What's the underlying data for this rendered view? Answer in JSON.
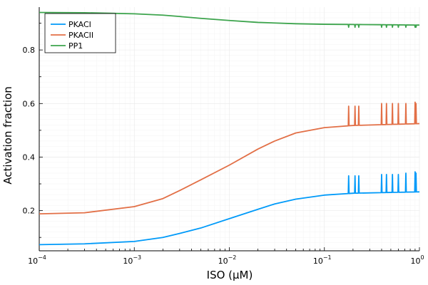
{
  "chart_data": {
    "type": "line",
    "title": "",
    "xlabel": "ISO (μM)",
    "ylabel": "Activation fraction",
    "xscale": "log10",
    "xlim": [
      0.0001,
      1
    ],
    "ylim": [
      0.05,
      0.96
    ],
    "grid": true,
    "legend_position": "top-left",
    "x_ticks": [
      {
        "value": 0.0001,
        "mantissa": "10",
        "exp": "−4"
      },
      {
        "value": 0.001,
        "mantissa": "10",
        "exp": "−3"
      },
      {
        "value": 0.01,
        "mantissa": "10",
        "exp": "−2"
      },
      {
        "value": 0.1,
        "mantissa": "10",
        "exp": "−1"
      },
      {
        "value": 1,
        "mantissa": "10",
        "exp": "0"
      }
    ],
    "y_ticks": [
      {
        "value": 0.2,
        "label": "0.2"
      },
      {
        "value": 0.4,
        "label": "0.4"
      },
      {
        "value": 0.6,
        "label": "0.6"
      },
      {
        "value": 0.8,
        "label": "0.8"
      }
    ],
    "series": [
      {
        "name": "PKACI",
        "color": "#009af9",
        "baseline_points": [
          [
            0.0001,
            0.073
          ],
          [
            0.0003,
            0.076
          ],
          [
            0.001,
            0.085
          ],
          [
            0.002,
            0.1
          ],
          [
            0.003,
            0.115
          ],
          [
            0.005,
            0.135
          ],
          [
            0.01,
            0.17
          ],
          [
            0.02,
            0.205
          ],
          [
            0.03,
            0.225
          ],
          [
            0.05,
            0.243
          ],
          [
            0.1,
            0.258
          ],
          [
            0.2,
            0.265
          ],
          [
            0.5,
            0.268
          ],
          [
            1,
            0.27
          ]
        ],
        "spikes": [
          [
            0.18,
            0.33
          ],
          [
            0.21,
            0.33
          ],
          [
            0.23,
            0.33
          ],
          [
            0.4,
            0.335
          ],
          [
            0.45,
            0.335
          ],
          [
            0.52,
            0.335
          ],
          [
            0.6,
            0.335
          ],
          [
            0.72,
            0.34
          ],
          [
            0.9,
            0.345
          ],
          [
            0.92,
            0.34
          ]
        ]
      },
      {
        "name": "PKACII",
        "color": "#e26f46",
        "baseline_points": [
          [
            0.0001,
            0.188
          ],
          [
            0.0003,
            0.192
          ],
          [
            0.001,
            0.215
          ],
          [
            0.002,
            0.245
          ],
          [
            0.003,
            0.275
          ],
          [
            0.005,
            0.315
          ],
          [
            0.01,
            0.37
          ],
          [
            0.02,
            0.43
          ],
          [
            0.03,
            0.46
          ],
          [
            0.05,
            0.49
          ],
          [
            0.1,
            0.51
          ],
          [
            0.2,
            0.518
          ],
          [
            0.5,
            0.522
          ],
          [
            1,
            0.525
          ]
        ],
        "spikes": [
          [
            0.18,
            0.59
          ],
          [
            0.21,
            0.59
          ],
          [
            0.23,
            0.59
          ],
          [
            0.4,
            0.6
          ],
          [
            0.45,
            0.6
          ],
          [
            0.52,
            0.6
          ],
          [
            0.6,
            0.6
          ],
          [
            0.72,
            0.6
          ],
          [
            0.9,
            0.605
          ],
          [
            0.92,
            0.6
          ]
        ]
      },
      {
        "name": "PP1",
        "color": "#3da44d",
        "baseline_points": [
          [
            0.0001,
            0.94
          ],
          [
            0.0003,
            0.939
          ],
          [
            0.001,
            0.935
          ],
          [
            0.002,
            0.93
          ],
          [
            0.003,
            0.925
          ],
          [
            0.005,
            0.918
          ],
          [
            0.01,
            0.91
          ],
          [
            0.02,
            0.903
          ],
          [
            0.05,
            0.898
          ],
          [
            0.1,
            0.896
          ],
          [
            0.5,
            0.894
          ],
          [
            1,
            0.893
          ]
        ],
        "spikes": [
          [
            0.18,
            0.885
          ],
          [
            0.21,
            0.885
          ],
          [
            0.23,
            0.885
          ],
          [
            0.4,
            0.885
          ],
          [
            0.45,
            0.885
          ],
          [
            0.52,
            0.885
          ],
          [
            0.6,
            0.885
          ],
          [
            0.72,
            0.885
          ],
          [
            0.9,
            0.885
          ],
          [
            0.92,
            0.885
          ]
        ]
      }
    ]
  }
}
